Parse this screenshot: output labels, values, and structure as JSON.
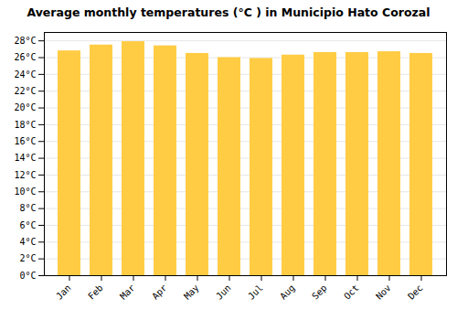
{
  "chart_data": {
    "type": "bar",
    "title": "Average monthly temperatures (°C ) in Municipio Hato Corozal",
    "categories": [
      "Jan",
      "Feb",
      "Mar",
      "Apr",
      "May",
      "Jun",
      "Jul",
      "Aug",
      "Sep",
      "Oct",
      "Nov",
      "Dec"
    ],
    "values": [
      26.8,
      27.5,
      27.9,
      27.4,
      26.5,
      26.0,
      25.9,
      26.3,
      26.6,
      26.6,
      26.7,
      26.5
    ],
    "color": "#FFCC44",
    "ylim": [
      0,
      29
    ],
    "yticks": [
      {
        "value": 0,
        "label": "0°C"
      },
      {
        "value": 2,
        "label": "2°C"
      },
      {
        "value": 4,
        "label": "4°C"
      },
      {
        "value": 6,
        "label": "6°C"
      },
      {
        "value": 8,
        "label": "8°C"
      },
      {
        "value": 10,
        "label": "10°C"
      },
      {
        "value": 12,
        "label": "12°C"
      },
      {
        "value": 14,
        "label": "14°C"
      },
      {
        "value": 16,
        "label": "16°C"
      },
      {
        "value": 18,
        "label": "18°C"
      },
      {
        "value": 20,
        "label": "20°C"
      },
      {
        "value": 22,
        "label": "22°C"
      },
      {
        "value": 24,
        "label": "24°C"
      },
      {
        "value": 26,
        "label": "26°C"
      },
      {
        "value": 28,
        "label": "28°C"
      }
    ],
    "grid": true
  }
}
